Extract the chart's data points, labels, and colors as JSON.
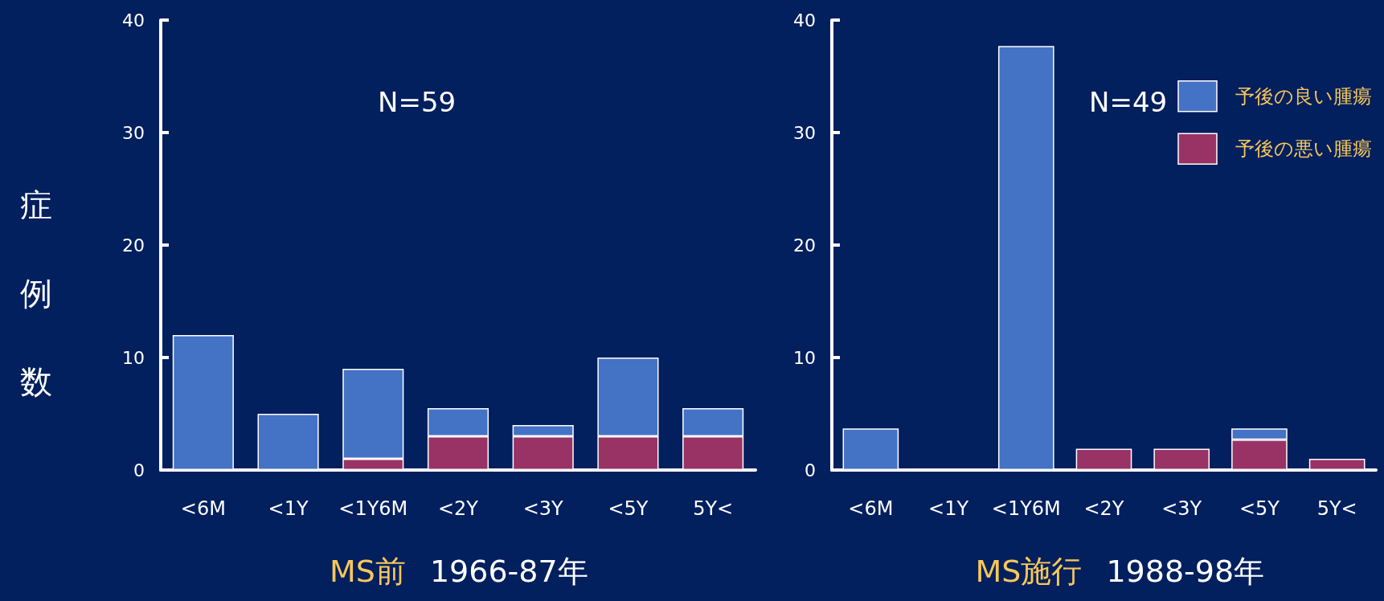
{
  "chart_data": [
    {
      "type": "bar",
      "title": "MS前 1966-87年",
      "ylabel": "症例数",
      "annotations": [
        "N=59"
      ],
      "categories": [
        "<6M",
        "<1Y",
        "<1Y6M",
        "<2Y",
        "<3Y",
        "<5Y",
        "5Y<"
      ],
      "stacked": true,
      "ylim": [
        0,
        40
      ],
      "yticks": [
        0,
        10,
        20,
        30,
        40
      ],
      "legend": false,
      "grid": false,
      "series": [
        {
          "color": "#993366",
          "values": [
            0,
            0,
            1,
            3,
            3,
            3,
            3
          ]
        },
        {
          "color": "#4472c4",
          "values": [
            12,
            5,
            8,
            2.5,
            1,
            7,
            2.5
          ]
        }
      ]
    },
    {
      "type": "bar",
      "title": "MS施行 1988-98年",
      "annotations": [
        "N=49"
      ],
      "categories": [
        "<6M",
        "<1Y",
        "<1Y6M",
        "<2Y",
        "<3Y",
        "<5Y",
        "5Y<"
      ],
      "stacked": true,
      "ylim": [
        0,
        40
      ],
      "yticks": [
        0,
        10,
        20,
        30,
        40
      ],
      "legend": "top right",
      "grid": false,
      "series": [
        {
          "name": "予後の悪い腫瘍",
          "color": "#993366",
          "values": [
            0,
            0,
            0,
            1.9,
            1.9,
            2.7,
            1
          ]
        },
        {
          "name": "予後の良い腫瘍",
          "color": "#4472c4",
          "values": [
            3.7,
            0,
            37.7,
            0,
            0,
            1,
            0
          ]
        }
      ]
    }
  ]
}
